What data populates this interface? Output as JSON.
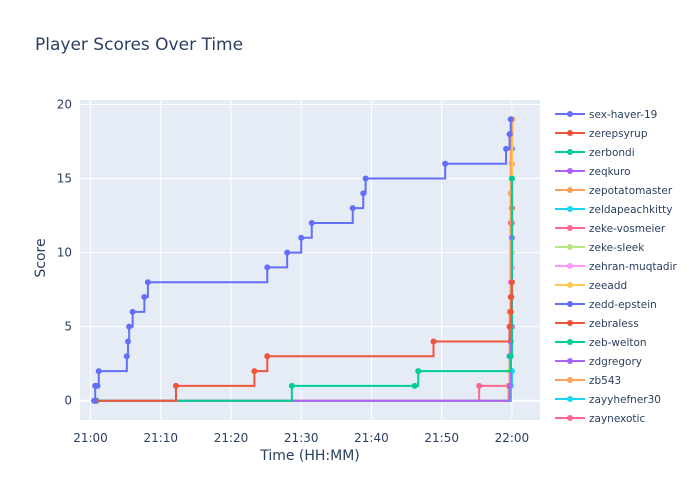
{
  "chart_data": {
    "type": "line",
    "line_shape": "step",
    "title": "Player Scores Over Time",
    "xlabel": "Time (HH:MM)",
    "ylabel": "Score",
    "x_range": [
      "20:58:30",
      "22:04:00"
    ],
    "ylim": [
      -1.3,
      20.3
    ],
    "x_ticks": [
      "21:00",
      "21:10",
      "21:20",
      "21:30",
      "21:40",
      "21:50",
      "22:00"
    ],
    "y_ticks": [
      0,
      5,
      10,
      15,
      20
    ],
    "grid": true,
    "legend_position": "right",
    "plot_background": "#e5ecf6",
    "series": [
      {
        "name": "sex-haver-19",
        "color": "#636efa",
        "points": [
          [
            "21:00:30",
            0
          ],
          [
            "21:00:40",
            1
          ],
          [
            "21:01:00",
            1
          ],
          [
            "21:01:10",
            2
          ],
          [
            "21:05:10",
            3
          ],
          [
            "21:05:20",
            4
          ],
          [
            "21:05:30",
            5
          ],
          [
            "21:06:00",
            6
          ],
          [
            "21:07:40",
            7
          ],
          [
            "21:08:10",
            8
          ],
          [
            "21:25:10",
            9
          ],
          [
            "21:28:00",
            10
          ],
          [
            "21:30:00",
            11
          ],
          [
            "21:31:30",
            12
          ],
          [
            "21:37:20",
            13
          ],
          [
            "21:38:50",
            14
          ],
          [
            "21:39:10",
            15
          ],
          [
            "21:50:30",
            16
          ],
          [
            "21:59:10",
            17
          ],
          [
            "21:59:40",
            18
          ],
          [
            "21:59:50",
            19
          ]
        ]
      },
      {
        "name": "zerepsyrup",
        "color": "#ef553b",
        "points": [
          [
            "21:00:40",
            0
          ],
          [
            "21:12:10",
            1
          ],
          [
            "21:23:20",
            2
          ],
          [
            "21:25:10",
            3
          ],
          [
            "21:48:50",
            4
          ],
          [
            "21:59:40",
            5
          ],
          [
            "21:59:50",
            6
          ],
          [
            "21:59:55",
            7
          ],
          [
            "22:00:00",
            8
          ]
        ]
      },
      {
        "name": "zerbondi",
        "color": "#00cc96",
        "points": [
          [
            "21:00:50",
            0
          ],
          [
            "21:28:40",
            1
          ],
          [
            "21:46:10",
            1
          ],
          [
            "21:46:40",
            2
          ],
          [
            "21:59:50",
            3
          ],
          [
            "22:00:00",
            15
          ]
        ]
      },
      {
        "name": "zeqkuro",
        "color": "#ab63fa",
        "points": [
          [
            "21:00:50",
            0
          ],
          [
            "21:59:40",
            1
          ],
          [
            "21:59:50",
            4
          ],
          [
            "22:00:00",
            11
          ]
        ]
      },
      {
        "name": "zepotatomaster",
        "color": "#ffa15a",
        "points": [
          [
            "21:00:50",
            0
          ],
          [
            "21:59:30",
            1
          ],
          [
            "21:59:40",
            6
          ],
          [
            "21:59:50",
            18
          ],
          [
            "22:00:00",
            19
          ]
        ]
      },
      {
        "name": "zeldapeachkitty",
        "color": "#19d3f3",
        "points": [
          [
            "21:00:50",
            0
          ],
          [
            "21:59:50",
            1
          ],
          [
            "22:00:00",
            2
          ]
        ]
      },
      {
        "name": "zeke-vosmeier",
        "color": "#ff6692",
        "points": [
          [
            "21:00:50",
            0
          ],
          [
            "21:55:20",
            1
          ],
          [
            "21:59:40",
            1
          ],
          [
            "21:59:50",
            5
          ],
          [
            "22:00:00",
            12
          ]
        ]
      },
      {
        "name": "zeke-sleek",
        "color": "#b6e880",
        "points": [
          [
            "21:00:50",
            0
          ],
          [
            "21:59:40",
            2
          ],
          [
            "21:59:50",
            6
          ],
          [
            "22:00:00",
            10
          ]
        ]
      },
      {
        "name": "zehran-muqtadir",
        "color": "#ff97ff",
        "points": [
          [
            "21:00:50",
            0
          ],
          [
            "21:59:50",
            8
          ],
          [
            "22:00:00",
            9
          ]
        ]
      },
      {
        "name": "zeeadd",
        "color": "#fecb52",
        "points": [
          [
            "21:00:50",
            0
          ],
          [
            "21:59:40",
            1
          ],
          [
            "21:59:50",
            3
          ],
          [
            "22:00:00",
            9
          ],
          [
            "22:00:05",
            19
          ]
        ]
      },
      {
        "name": "zedd-epstein",
        "color": "#636efa",
        "points": [
          [
            "21:00:50",
            0
          ],
          [
            "21:59:40",
            3
          ],
          [
            "21:59:50",
            8
          ],
          [
            "22:00:00",
            17
          ]
        ]
      },
      {
        "name": "zebraless",
        "color": "#ef553b",
        "points": [
          [
            "21:00:50",
            0
          ],
          [
            "21:59:50",
            7
          ],
          [
            "22:00:00",
            13
          ]
        ]
      },
      {
        "name": "zeb-welton",
        "color": "#00cc96",
        "points": [
          [
            "21:00:50",
            0
          ],
          [
            "21:59:40",
            1
          ],
          [
            "21:59:50",
            5
          ],
          [
            "22:00:00",
            15
          ]
        ]
      },
      {
        "name": "zdgregory",
        "color": "#ab63fa",
        "points": [
          [
            "21:00:50",
            0
          ],
          [
            "21:59:50",
            4
          ],
          [
            "22:00:00",
            5
          ]
        ]
      },
      {
        "name": "zb543",
        "color": "#ffa15a",
        "points": [
          [
            "21:00:50",
            0
          ],
          [
            "21:59:40",
            1
          ],
          [
            "21:59:50",
            14
          ],
          [
            "22:00:00",
            16
          ]
        ]
      },
      {
        "name": "zayyhefner30",
        "color": "#19d3f3",
        "points": [
          [
            "21:00:50",
            0
          ],
          [
            "21:59:50",
            1
          ],
          [
            "22:00:00",
            2
          ]
        ]
      },
      {
        "name": "zaynexotic",
        "color": "#ff6692",
        "points": [
          [
            "21:00:50",
            0
          ],
          [
            "21:59:40",
            1
          ],
          [
            "21:59:50",
            12
          ],
          [
            "22:00:00",
            16
          ]
        ]
      }
    ]
  }
}
